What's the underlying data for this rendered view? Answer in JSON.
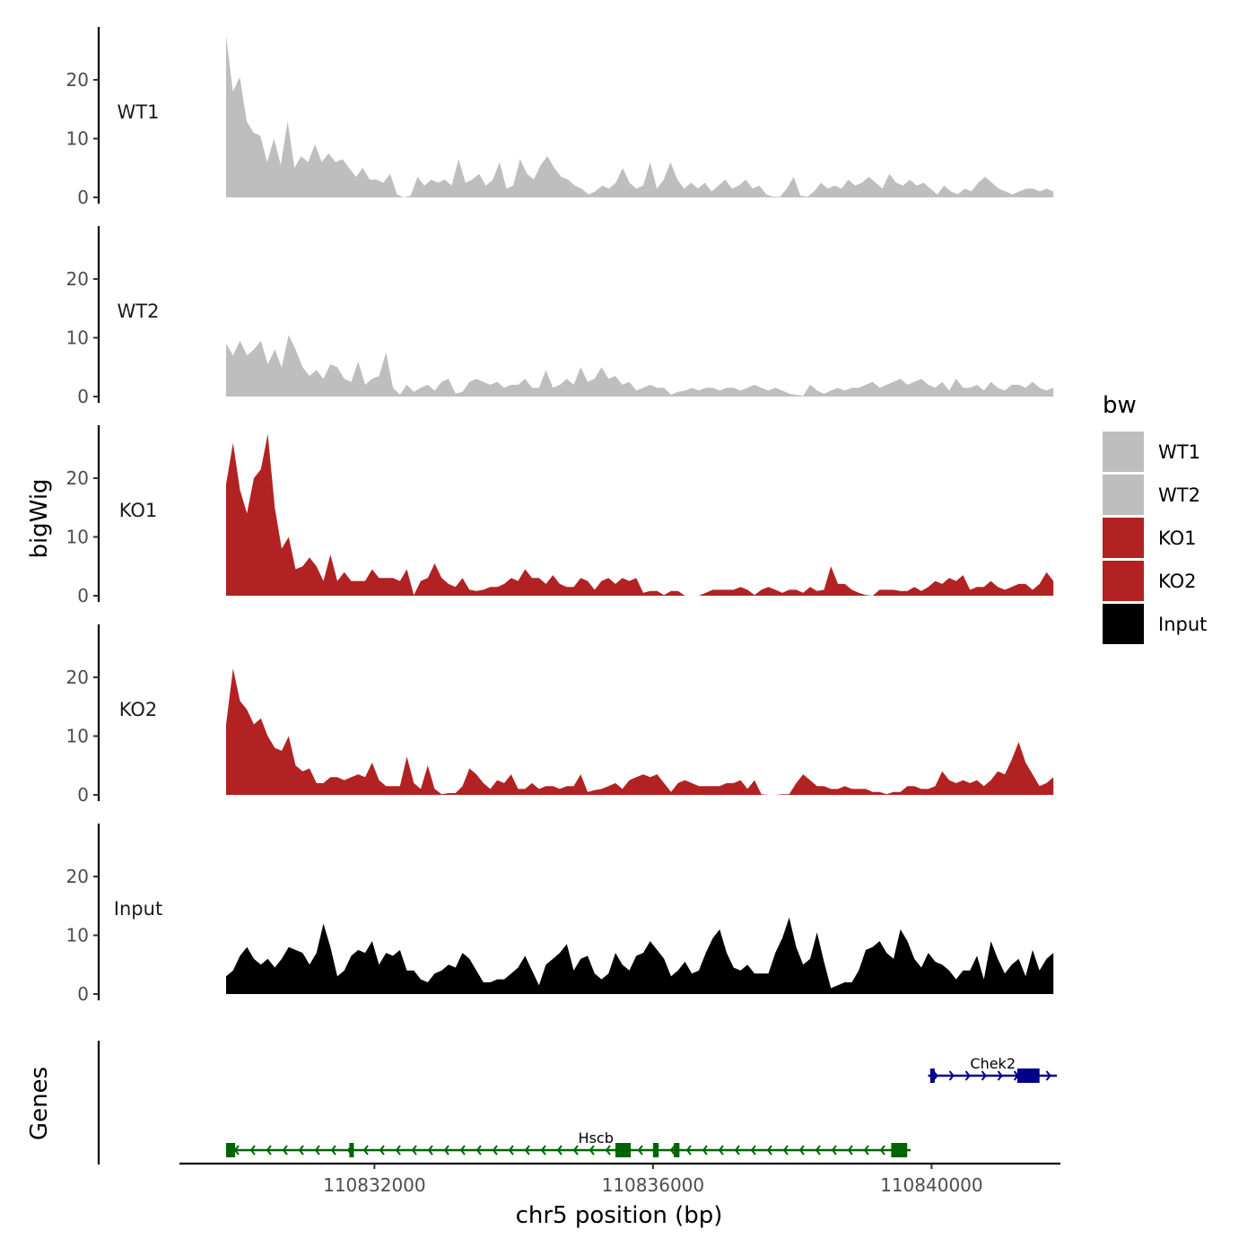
{
  "chart_data": {
    "type": "area",
    "xlabel": "chr5 position (bp)",
    "ylabel": "bigWig",
    "genes_label": "Genes",
    "xlim": [
      110829200,
      110841850
    ],
    "x_ticks": [
      {
        "value": 110832000,
        "label": "110832000"
      },
      {
        "value": 110836000,
        "label": "110836000"
      },
      {
        "value": 110840000,
        "label": "110840000"
      }
    ],
    "ylim": [
      0,
      29
    ],
    "y_ticks": [
      {
        "value": 0,
        "label": "0"
      },
      {
        "value": 10,
        "label": "10"
      },
      {
        "value": 20,
        "label": "20"
      }
    ],
    "data_range": [
      110829870,
      110841750
    ],
    "legend": {
      "title": "bw",
      "items": [
        {
          "label": "WT1",
          "color": "#bebebe"
        },
        {
          "label": "WT2",
          "color": "#bebebe"
        },
        {
          "label": "KO1",
          "color": "#b22222"
        },
        {
          "label": "KO2",
          "color": "#b22222"
        },
        {
          "label": "Input",
          "color": "#000000"
        }
      ]
    },
    "tracks": [
      {
        "name": "WT1",
        "color": "#bebebe",
        "values": [
          27.5,
          18,
          20.5,
          13,
          11,
          10.5,
          6,
          10,
          5.5,
          13,
          5,
          7,
          6,
          9,
          6,
          7.5,
          6,
          6.5,
          5,
          3.5,
          5,
          3,
          3,
          2.5,
          4,
          0.5,
          0,
          0.3,
          3.5,
          2,
          3,
          2.5,
          3,
          2,
          6.5,
          2.5,
          3,
          4,
          2,
          3,
          6,
          1.5,
          2,
          6.5,
          4,
          3,
          5.5,
          7,
          5,
          3.5,
          3,
          2,
          1.5,
          0.5,
          1,
          2,
          1.5,
          2.5,
          5,
          2.5,
          1.5,
          2,
          6,
          1.5,
          3,
          6,
          3,
          1.5,
          2.5,
          1.5,
          2.5,
          1,
          2,
          3,
          1.5,
          2,
          3,
          1.5,
          2,
          0.5,
          0.1,
          0.1,
          1.5,
          3.5,
          0.3,
          0.1,
          1,
          2.5,
          1.5,
          2,
          1.5,
          3,
          2,
          2.5,
          3.5,
          2.5,
          1.5,
          4,
          2.5,
          2,
          3,
          2,
          2.5,
          1.5,
          0.5,
          2,
          1,
          0.5,
          1.5,
          1,
          2.5,
          3.5,
          2.5,
          1.5,
          1,
          0.5,
          1,
          1.5,
          1.5,
          1,
          1.5,
          1
        ]
      },
      {
        "name": "WT2",
        "color": "#bebebe",
        "values": [
          9,
          7,
          9.5,
          7,
          8,
          9.5,
          5.5,
          8,
          5,
          10.5,
          8,
          5,
          3.5,
          4.5,
          3,
          5.5,
          5,
          3,
          2.5,
          6,
          2,
          3,
          3.5,
          7.5,
          1.5,
          0.3,
          2,
          0.8,
          1.5,
          2,
          1,
          2.5,
          3,
          0.5,
          0.8,
          2.5,
          3,
          2.5,
          2,
          2.5,
          1.5,
          2,
          2,
          3,
          1.5,
          1.5,
          4.5,
          1.5,
          2,
          3,
          2,
          5,
          2.5,
          3,
          5,
          3,
          3.5,
          2,
          2.5,
          1,
          1.5,
          2,
          1.5,
          1.5,
          0.3,
          0.8,
          1,
          1.5,
          1,
          1.5,
          1.5,
          1,
          1.5,
          1.5,
          1,
          1.5,
          2,
          1.5,
          1,
          1.5,
          1,
          0.5,
          0.3,
          0.1,
          2,
          1,
          0.5,
          1,
          1.5,
          1,
          1.5,
          1.5,
          2,
          2.5,
          1.5,
          2,
          2.5,
          3,
          2,
          2.5,
          3,
          2,
          1.5,
          2.5,
          1,
          3,
          1.5,
          1.5,
          2,
          1,
          2.5,
          1.5,
          1,
          2,
          2,
          1.5,
          2.5,
          1.5,
          1,
          1.5
        ]
      },
      {
        "name": "KO1",
        "color": "#b22222",
        "values": [
          19,
          26,
          18,
          14,
          20,
          21.5,
          27.5,
          15,
          8,
          10,
          4.5,
          5,
          6.5,
          5,
          2.5,
          7,
          2.5,
          4,
          2.5,
          2.5,
          2.5,
          4.5,
          3,
          3,
          3,
          2.5,
          4.5,
          0.1,
          2.5,
          3,
          5.5,
          3,
          2,
          1.5,
          3,
          1,
          0.8,
          1,
          1.5,
          1.5,
          2,
          3,
          2.5,
          4.5,
          3,
          3,
          2,
          3.5,
          2,
          1.5,
          1.5,
          3,
          2.5,
          1,
          2.5,
          3,
          2,
          3,
          2.5,
          3,
          0.5,
          0.8,
          0.8,
          0.1,
          0.8,
          0.8,
          0,
          0,
          0,
          0.5,
          1,
          1,
          1,
          1,
          1.5,
          1,
          0.1,
          1,
          1.5,
          1,
          0.5,
          1,
          1,
          0.5,
          1.5,
          0.8,
          1,
          5,
          2,
          2,
          1,
          0.5,
          0.1,
          0,
          1,
          1,
          1,
          0.8,
          0.8,
          1.5,
          0.8,
          1.5,
          2.5,
          2,
          3,
          2.5,
          3.5,
          1,
          1.5,
          1.5,
          2.5,
          1.5,
          1,
          1.5,
          2,
          2,
          1,
          2,
          4,
          2.5
        ]
      },
      {
        "name": "KO2",
        "color": "#b22222",
        "values": [
          12,
          21.5,
          16,
          14.5,
          12,
          13,
          10,
          8,
          7.5,
          10,
          5,
          4,
          4.5,
          2,
          2,
          3,
          3,
          2.5,
          3,
          3.5,
          3,
          5.5,
          2.5,
          1.5,
          1.5,
          1.5,
          6.5,
          2,
          1,
          5,
          1,
          0.1,
          0.3,
          0.3,
          1.5,
          4.5,
          3.5,
          2,
          1,
          2.5,
          2,
          3.5,
          1,
          1,
          2,
          1,
          1.5,
          1.5,
          1,
          1.5,
          1.5,
          3.5,
          0.5,
          0.8,
          1,
          1.5,
          2,
          1,
          2.5,
          3,
          3.5,
          3,
          3.5,
          2,
          0.5,
          2,
          2.5,
          2,
          1.5,
          1.5,
          1.5,
          1.5,
          2,
          2,
          2.5,
          1,
          2.5,
          0.1,
          0,
          0,
          0.1,
          0.1,
          2,
          3.5,
          2.5,
          1.5,
          1.5,
          1,
          1,
          1.5,
          1,
          1,
          1,
          0.5,
          0.5,
          0.1,
          0.5,
          0.5,
          1.5,
          1.5,
          1,
          1,
          1.5,
          4,
          2.5,
          2,
          2.5,
          2,
          2.5,
          1.5,
          2.5,
          4,
          3.5,
          6,
          9,
          5.5,
          3.5,
          1.5,
          2,
          3
        ]
      },
      {
        "name": "Input",
        "color": "#000000",
        "values": [
          3,
          4,
          6.5,
          8,
          6,
          5,
          6,
          4.5,
          6,
          8,
          7.5,
          7,
          5,
          7,
          12,
          8,
          3,
          4,
          6.5,
          7.5,
          7,
          9,
          5,
          7,
          6.5,
          7.5,
          4,
          4,
          2.5,
          2,
          3.5,
          4,
          5,
          4.5,
          7,
          6,
          4,
          2,
          2,
          2.5,
          2.5,
          3.5,
          4.5,
          6.5,
          4,
          1.5,
          5,
          6,
          7,
          8.5,
          4,
          6,
          6.5,
          3.5,
          2.5,
          3.5,
          7,
          5,
          4,
          6.5,
          7,
          9,
          7.5,
          6,
          3,
          4,
          5.5,
          3.5,
          4,
          7,
          9.5,
          11,
          7,
          4.5,
          4,
          5,
          3.5,
          3.5,
          3.5,
          7,
          9.5,
          13,
          8,
          5,
          6,
          10.5,
          5.5,
          1,
          1.5,
          2,
          2,
          4,
          7.5,
          8,
          9,
          7,
          6,
          11,
          9,
          6,
          4.5,
          7,
          5.5,
          5,
          4,
          2.5,
          4,
          4,
          6.5,
          2.5,
          9,
          6,
          3.5,
          5,
          6,
          3,
          7.5,
          4,
          6,
          7
        ]
      }
    ],
    "genes": [
      {
        "name": "Hscb",
        "strand": "-",
        "color": "#006400",
        "row": 2,
        "start": 110829870,
        "end": 110839700,
        "label_pos": 110835180,
        "exons": [
          [
            110829870,
            110830000
          ],
          [
            110831640,
            110831680
          ],
          [
            110835460,
            110835680
          ],
          [
            110836000,
            110836080
          ],
          [
            110836300,
            110836380
          ],
          [
            110839420,
            110839650
          ]
        ]
      },
      {
        "name": "Chek2",
        "strand": "+",
        "color": "#00008b",
        "row": 1,
        "start": 110839950,
        "end": 110841800,
        "label_pos": 110840880,
        "exons": [
          [
            110839980,
            110840020
          ],
          [
            110841230,
            110841550
          ]
        ]
      }
    ]
  }
}
